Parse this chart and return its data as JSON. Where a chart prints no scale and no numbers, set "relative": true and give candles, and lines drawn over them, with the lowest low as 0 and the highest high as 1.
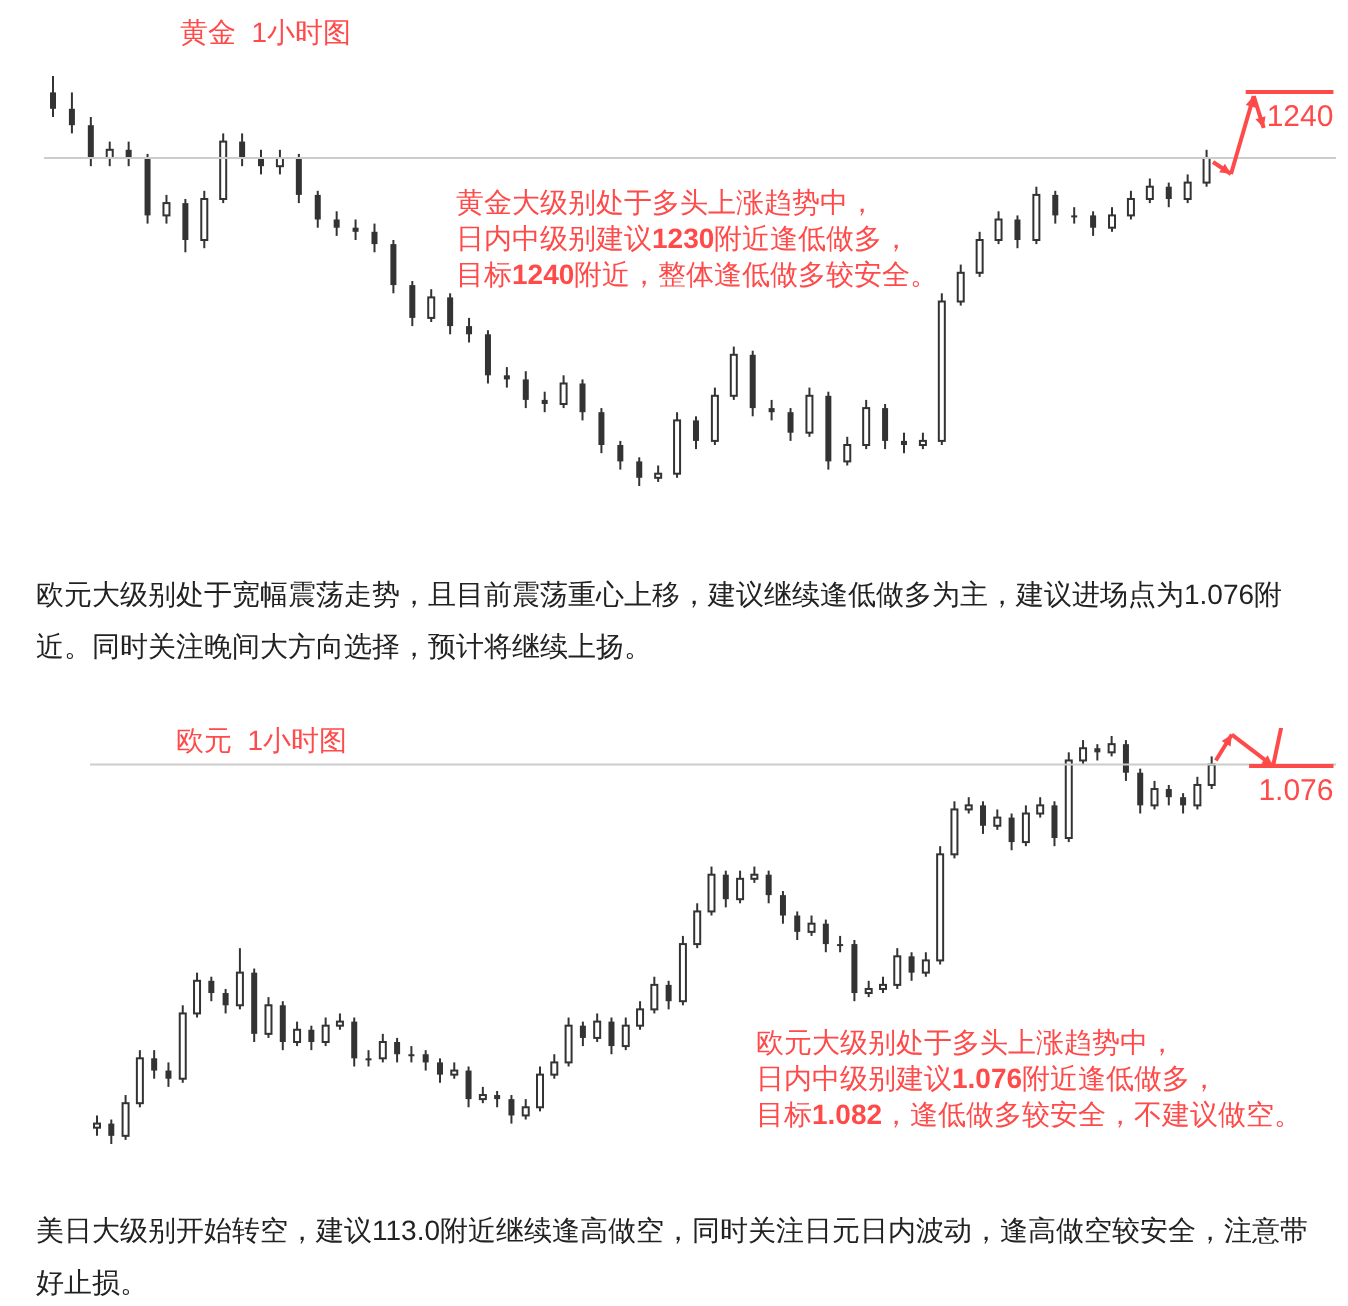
{
  "chart_data": [
    {
      "type": "candlestick",
      "title": "黄金  1小时图",
      "relative": true,
      "tick_labels": false,
      "color": "#333333",
      "categories": [
        null,
        null,
        null,
        null,
        null,
        null,
        null,
        null,
        null,
        null,
        null,
        null,
        null,
        null,
        null,
        null,
        null,
        null,
        null,
        null,
        null,
        null,
        null,
        null,
        null,
        null,
        null,
        null,
        null,
        null,
        null,
        null,
        null,
        null,
        null,
        null,
        null,
        null,
        null,
        null,
        null,
        null,
        null,
        null,
        null,
        null,
        null,
        null,
        null,
        null,
        null,
        null,
        null,
        null,
        null,
        null,
        null,
        null,
        null,
        null,
        null,
        null
      ],
      "ohlc": [
        [
          0.96,
          1.0,
          0.9,
          0.92
        ],
        [
          0.92,
          0.96,
          0.86,
          0.88
        ],
        [
          0.88,
          0.9,
          0.78,
          0.8
        ],
        [
          0.8,
          0.84,
          0.78,
          0.82
        ],
        [
          0.82,
          0.84,
          0.78,
          0.8
        ],
        [
          0.8,
          0.81,
          0.64,
          0.66
        ],
        [
          0.66,
          0.71,
          0.64,
          0.69
        ],
        [
          0.69,
          0.7,
          0.57,
          0.6
        ],
        [
          0.6,
          0.72,
          0.58,
          0.7
        ],
        [
          0.7,
          0.86,
          0.69,
          0.84
        ],
        [
          0.84,
          0.86,
          0.78,
          0.8
        ],
        [
          0.8,
          0.82,
          0.76,
          0.78
        ],
        [
          0.78,
          0.82,
          0.76,
          0.8
        ],
        [
          0.8,
          0.81,
          0.69,
          0.71
        ],
        [
          0.71,
          0.72,
          0.63,
          0.65
        ],
        [
          0.65,
          0.67,
          0.61,
          0.63
        ],
        [
          0.63,
          0.65,
          0.6,
          0.62
        ],
        [
          0.62,
          0.64,
          0.57,
          0.59
        ],
        [
          0.59,
          0.6,
          0.47,
          0.49
        ],
        [
          0.49,
          0.5,
          0.39,
          0.41
        ],
        [
          0.41,
          0.48,
          0.4,
          0.46
        ],
        [
          0.46,
          0.47,
          0.37,
          0.39
        ],
        [
          0.39,
          0.41,
          0.35,
          0.37
        ],
        [
          0.37,
          0.38,
          0.25,
          0.27
        ],
        [
          0.27,
          0.29,
          0.24,
          0.26
        ],
        [
          0.26,
          0.28,
          0.19,
          0.21
        ],
        [
          0.21,
          0.23,
          0.18,
          0.2
        ],
        [
          0.2,
          0.27,
          0.19,
          0.25
        ],
        [
          0.25,
          0.26,
          0.16,
          0.18
        ],
        [
          0.18,
          0.19,
          0.08,
          0.1
        ],
        [
          0.1,
          0.11,
          0.04,
          0.06
        ],
        [
          0.06,
          0.07,
          0.0,
          0.02
        ],
        [
          0.02,
          0.05,
          0.01,
          0.03
        ],
        [
          0.03,
          0.18,
          0.02,
          0.16
        ],
        [
          0.16,
          0.17,
          0.09,
          0.11
        ],
        [
          0.11,
          0.24,
          0.1,
          0.22
        ],
        [
          0.22,
          0.34,
          0.21,
          0.32
        ],
        [
          0.32,
          0.33,
          0.17,
          0.19
        ],
        [
          0.19,
          0.21,
          0.16,
          0.18
        ],
        [
          0.18,
          0.19,
          0.11,
          0.13
        ],
        [
          0.13,
          0.24,
          0.12,
          0.22
        ],
        [
          0.22,
          0.23,
          0.04,
          0.06
        ],
        [
          0.06,
          0.12,
          0.05,
          0.1
        ],
        [
          0.1,
          0.21,
          0.09,
          0.19
        ],
        [
          0.19,
          0.2,
          0.09,
          0.11
        ],
        [
          0.11,
          0.13,
          0.08,
          0.1
        ],
        [
          0.1,
          0.13,
          0.09,
          0.11
        ],
        [
          0.11,
          0.47,
          0.1,
          0.45
        ],
        [
          0.45,
          0.54,
          0.44,
          0.52
        ],
        [
          0.52,
          0.62,
          0.51,
          0.6
        ],
        [
          0.6,
          0.67,
          0.59,
          0.65
        ],
        [
          0.65,
          0.66,
          0.58,
          0.6
        ],
        [
          0.6,
          0.73,
          0.59,
          0.71
        ],
        [
          0.71,
          0.72,
          0.64,
          0.66
        ],
        [
          0.66,
          0.68,
          0.64,
          0.66
        ],
        [
          0.66,
          0.67,
          0.61,
          0.63
        ],
        [
          0.63,
          0.68,
          0.62,
          0.66
        ],
        [
          0.66,
          0.72,
          0.65,
          0.7
        ],
        [
          0.7,
          0.75,
          0.69,
          0.73
        ],
        [
          0.73,
          0.74,
          0.68,
          0.7
        ],
        [
          0.7,
          0.76,
          0.69,
          0.74
        ],
        [
          0.74,
          0.82,
          0.73,
          0.8
        ]
      ],
      "ref_lines": [
        {
          "axis": "y",
          "value": 0.8,
          "color": "#cccccc"
        }
      ],
      "annotations": [
        "黄金大级别处于多头上涨趋势中，",
        "日内中级别建议1230附近逢低做多，",
        "目标1240附近，整体逢低做多较安全。",
        "1240"
      ]
    },
    {
      "type": "other",
      "annotations": [
        "欧元大级别处于宽幅震荡走势，且目前震荡重心上移，建议继续逢低做多为主，建议进场点为1.076附近。同时关注晚间大方向选择，预计将继续上扬。"
      ]
    },
    {
      "type": "candlestick",
      "title": "欧元  1小时图",
      "relative": true,
      "tick_labels": false,
      "color": "#333333",
      "categories": [
        null,
        null,
        null,
        null,
        null,
        null,
        null,
        null,
        null,
        null,
        null,
        null,
        null,
        null,
        null,
        null,
        null,
        null,
        null,
        null,
        null,
        null,
        null,
        null,
        null,
        null,
        null,
        null,
        null,
        null,
        null,
        null,
        null,
        null,
        null,
        null,
        null,
        null,
        null,
        null,
        null,
        null,
        null,
        null,
        null,
        null,
        null,
        null,
        null,
        null,
        null,
        null,
        null,
        null,
        null,
        null,
        null,
        null,
        null,
        null,
        null,
        null,
        null,
        null,
        null,
        null,
        null,
        null,
        null,
        null,
        null,
        null,
        null,
        null,
        null,
        null,
        null,
        null,
        null
      ],
      "ohlc": [
        [
          0.04,
          0.07,
          0.02,
          0.05
        ],
        [
          0.05,
          0.06,
          0.0,
          0.02
        ],
        [
          0.02,
          0.12,
          0.01,
          0.1
        ],
        [
          0.1,
          0.23,
          0.09,
          0.21
        ],
        [
          0.21,
          0.23,
          0.16,
          0.18
        ],
        [
          0.18,
          0.2,
          0.14,
          0.16
        ],
        [
          0.16,
          0.34,
          0.15,
          0.32
        ],
        [
          0.32,
          0.42,
          0.31,
          0.4
        ],
        [
          0.4,
          0.41,
          0.35,
          0.37
        ],
        [
          0.37,
          0.38,
          0.32,
          0.34
        ],
        [
          0.34,
          0.48,
          0.33,
          0.42
        ],
        [
          0.42,
          0.43,
          0.25,
          0.27
        ],
        [
          0.27,
          0.36,
          0.26,
          0.34
        ],
        [
          0.34,
          0.35,
          0.23,
          0.25
        ],
        [
          0.25,
          0.3,
          0.24,
          0.28
        ],
        [
          0.28,
          0.29,
          0.23,
          0.25
        ],
        [
          0.25,
          0.31,
          0.24,
          0.29
        ],
        [
          0.29,
          0.32,
          0.28,
          0.3
        ],
        [
          0.3,
          0.31,
          0.19,
          0.21
        ],
        [
          0.21,
          0.23,
          0.19,
          0.21
        ],
        [
          0.21,
          0.27,
          0.2,
          0.25
        ],
        [
          0.25,
          0.26,
          0.2,
          0.22
        ],
        [
          0.22,
          0.24,
          0.2,
          0.22
        ],
        [
          0.22,
          0.23,
          0.18,
          0.2
        ],
        [
          0.2,
          0.21,
          0.15,
          0.17
        ],
        [
          0.17,
          0.2,
          0.16,
          0.18
        ],
        [
          0.18,
          0.19,
          0.09,
          0.11
        ],
        [
          0.11,
          0.14,
          0.1,
          0.12
        ],
        [
          0.12,
          0.13,
          0.09,
          0.11
        ],
        [
          0.11,
          0.12,
          0.05,
          0.07
        ],
        [
          0.07,
          0.11,
          0.06,
          0.09
        ],
        [
          0.09,
          0.19,
          0.08,
          0.17
        ],
        [
          0.17,
          0.22,
          0.16,
          0.2
        ],
        [
          0.2,
          0.31,
          0.19,
          0.29
        ],
        [
          0.29,
          0.3,
          0.24,
          0.26
        ],
        [
          0.26,
          0.32,
          0.25,
          0.3
        ],
        [
          0.3,
          0.31,
          0.22,
          0.24
        ],
        [
          0.24,
          0.31,
          0.23,
          0.29
        ],
        [
          0.29,
          0.35,
          0.28,
          0.33
        ],
        [
          0.33,
          0.41,
          0.32,
          0.39
        ],
        [
          0.39,
          0.4,
          0.33,
          0.35
        ],
        [
          0.35,
          0.51,
          0.34,
          0.49
        ],
        [
          0.49,
          0.59,
          0.48,
          0.57
        ],
        [
          0.57,
          0.68,
          0.56,
          0.66
        ],
        [
          0.66,
          0.67,
          0.58,
          0.6
        ],
        [
          0.6,
          0.67,
          0.59,
          0.65
        ],
        [
          0.65,
          0.68,
          0.64,
          0.66
        ],
        [
          0.66,
          0.67,
          0.59,
          0.61
        ],
        [
          0.61,
          0.62,
          0.54,
          0.56
        ],
        [
          0.56,
          0.57,
          0.5,
          0.52
        ],
        [
          0.52,
          0.56,
          0.51,
          0.54
        ],
        [
          0.54,
          0.55,
          0.47,
          0.49
        ],
        [
          0.49,
          0.51,
          0.47,
          0.49
        ],
        [
          0.49,
          0.5,
          0.35,
          0.37
        ],
        [
          0.37,
          0.4,
          0.36,
          0.38
        ],
        [
          0.38,
          0.41,
          0.37,
          0.39
        ],
        [
          0.39,
          0.48,
          0.38,
          0.46
        ],
        [
          0.46,
          0.47,
          0.4,
          0.42
        ],
        [
          0.42,
          0.47,
          0.41,
          0.45
        ],
        [
          0.45,
          0.73,
          0.44,
          0.71
        ],
        [
          0.71,
          0.84,
          0.7,
          0.82
        ],
        [
          0.82,
          0.85,
          0.81,
          0.83
        ],
        [
          0.83,
          0.84,
          0.76,
          0.78
        ],
        [
          0.78,
          0.82,
          0.77,
          0.8
        ],
        [
          0.8,
          0.81,
          0.72,
          0.74
        ],
        [
          0.74,
          0.83,
          0.73,
          0.81
        ],
        [
          0.81,
          0.85,
          0.8,
          0.83
        ],
        [
          0.83,
          0.84,
          0.73,
          0.75
        ],
        [
          0.75,
          0.96,
          0.74,
          0.94
        ],
        [
          0.94,
          0.99,
          0.93,
          0.97
        ],
        [
          0.97,
          0.98,
          0.94,
          0.96
        ],
        [
          0.96,
          1.0,
          0.95,
          0.98
        ],
        [
          0.98,
          0.99,
          0.89,
          0.91
        ],
        [
          0.91,
          0.92,
          0.81,
          0.83
        ],
        [
          0.83,
          0.89,
          0.82,
          0.87
        ],
        [
          0.87,
          0.88,
          0.83,
          0.85
        ],
        [
          0.85,
          0.86,
          0.81,
          0.83
        ],
        [
          0.83,
          0.9,
          0.82,
          0.88
        ],
        [
          0.88,
          0.95,
          0.87,
          0.93
        ]
      ],
      "ref_lines": [
        {
          "axis": "y",
          "value": 0.93,
          "color": "#cccccc"
        }
      ],
      "annotations": [
        "欧元大级别处于多头上涨趋势中，",
        "日内中级别建议1.076附近逢低做多，",
        "目标1.082，逢低做多较安全，不建议做空。",
        "1.076"
      ]
    },
    {
      "type": "other",
      "annotations": [
        "美日大级别开始转空，建议113.0附近继续逢高做空，同时关注日元日内波动，逢高做空较安全，注意带好止损。"
      ]
    }
  ]
}
